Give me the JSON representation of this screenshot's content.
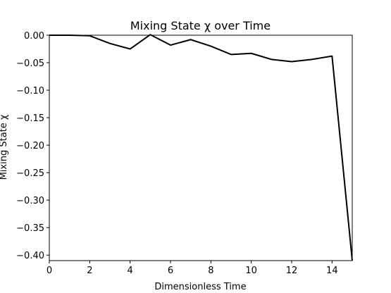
{
  "chart_data": {
    "type": "line",
    "title": "Mixing State χ over Time",
    "xlabel": "Dimensionless Time",
    "ylabel": "Mixing State χ",
    "xlim": [
      0,
      15
    ],
    "ylim": [
      -0.41,
      0.0
    ],
    "xticks": [
      0,
      2,
      4,
      6,
      8,
      10,
      12,
      14
    ],
    "yticks": [
      0.0,
      -0.05,
      -0.1,
      -0.15,
      -0.2,
      -0.25,
      -0.3,
      -0.35,
      -0.4
    ],
    "ytick_labels": [
      "0.00",
      "−0.05",
      "−0.10",
      "−0.15",
      "−0.20",
      "−0.25",
      "−0.30",
      "−0.35",
      "−0.40"
    ],
    "grid": false,
    "series": [
      {
        "color": "#000000",
        "x": [
          0,
          1,
          2,
          3,
          4,
          5,
          6,
          7,
          8,
          9,
          10,
          11,
          12,
          13,
          14,
          15
        ],
        "y": [
          0.0,
          0.0,
          -0.001,
          -0.015,
          -0.025,
          0.001,
          -0.018,
          -0.008,
          -0.02,
          -0.035,
          -0.033,
          -0.044,
          -0.048,
          -0.044,
          -0.038,
          -0.41
        ]
      }
    ]
  }
}
